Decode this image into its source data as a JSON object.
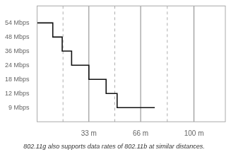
{
  "chart_data": {
    "type": "line",
    "caption": "802.11g also supports data rates of 802.11b at similar distances.",
    "x": [
      0,
      10,
      10,
      16,
      16,
      22,
      22,
      33,
      33,
      44,
      44,
      51,
      51,
      60,
      60,
      75
    ],
    "values": [
      7,
      7,
      6,
      6,
      5,
      5,
      4,
      4,
      3,
      3,
      2,
      2,
      1,
      1,
      1,
      1
    ],
    "color": "#111111",
    "xlim": [
      0,
      120
    ],
    "xticks": [
      {
        "value": 33,
        "label": "33 m"
      },
      {
        "value": 66,
        "label": "66 m"
      },
      {
        "value": 100,
        "label": "100 m"
      }
    ],
    "ylim": [
      0,
      8.2
    ],
    "yticks": [
      {
        "value": 7,
        "label": "54 Mbps"
      },
      {
        "value": 6,
        "label": "48 Mbps"
      },
      {
        "value": 5,
        "label": "36 Mbps"
      },
      {
        "value": 4,
        "label": "24 Mbps"
      },
      {
        "value": 3,
        "label": "18 Mbps"
      },
      {
        "value": 2,
        "label": "12 Mbps"
      },
      {
        "value": 1,
        "label": "9 Mbps"
      }
    ],
    "vlines": [
      {
        "value": 33,
        "line_style": "solid",
        "color": "#666666"
      },
      {
        "value": 66,
        "line_style": "solid",
        "color": "#666666"
      },
      {
        "value": 100,
        "line_style": "solid",
        "color": "#666666"
      },
      {
        "value": 16.5,
        "line_style": "dashed",
        "color": "#999999"
      },
      {
        "value": 49.5,
        "line_style": "dashed",
        "color": "#999999"
      },
      {
        "value": 83,
        "line_style": "dashed",
        "color": "#999999"
      }
    ],
    "grid": false
  }
}
